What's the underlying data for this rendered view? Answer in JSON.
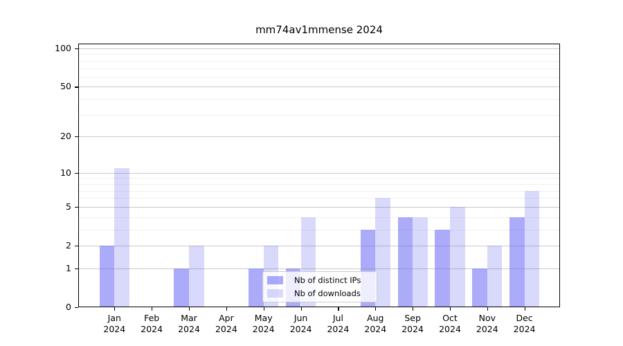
{
  "chart_data": {
    "type": "bar",
    "title": "mm74av1mmense 2024",
    "months": [
      "Jan",
      "Feb",
      "Mar",
      "Apr",
      "May",
      "Jun",
      "Jul",
      "Aug",
      "Sep",
      "Oct",
      "Nov",
      "Dec"
    ],
    "year_label": "2024",
    "categories": [
      "Jan 2024",
      "Feb 2024",
      "Mar 2024",
      "Apr 2024",
      "May 2024",
      "Jun 2024",
      "Jul 2024",
      "Aug 2024",
      "Sep 2024",
      "Oct 2024",
      "Nov 2024",
      "Dec 2024"
    ],
    "series": [
      {
        "name": "Nb of distinct IPs",
        "color": "rgba(102,102,245,0.55)",
        "values": [
          2,
          0,
          1,
          0,
          1,
          1,
          0,
          3,
          4,
          3,
          1,
          4
        ]
      },
      {
        "name": "Nb of downloads",
        "color": "rgba(102,102,245,0.25)",
        "values": [
          11,
          0,
          2,
          0,
          2,
          4,
          0,
          6,
          4,
          5,
          2,
          7
        ]
      }
    ],
    "xlabel": "",
    "ylabel": "",
    "y_axis": {
      "scale": "log1p",
      "major_ticks": [
        100,
        50,
        20,
        10,
        5,
        2,
        1,
        0
      ],
      "minor_ticks": [
        3,
        4,
        6,
        7,
        8,
        9,
        30,
        40,
        60,
        70,
        80,
        90
      ],
      "ylim": [
        0,
        110
      ]
    },
    "grid": true,
    "legend_position": "lower-center",
    "colors": {
      "major_grid": "#c9c9c9",
      "minor_grid": "#f0f0f0",
      "axis": "#000000",
      "background": "#ffffff"
    }
  }
}
